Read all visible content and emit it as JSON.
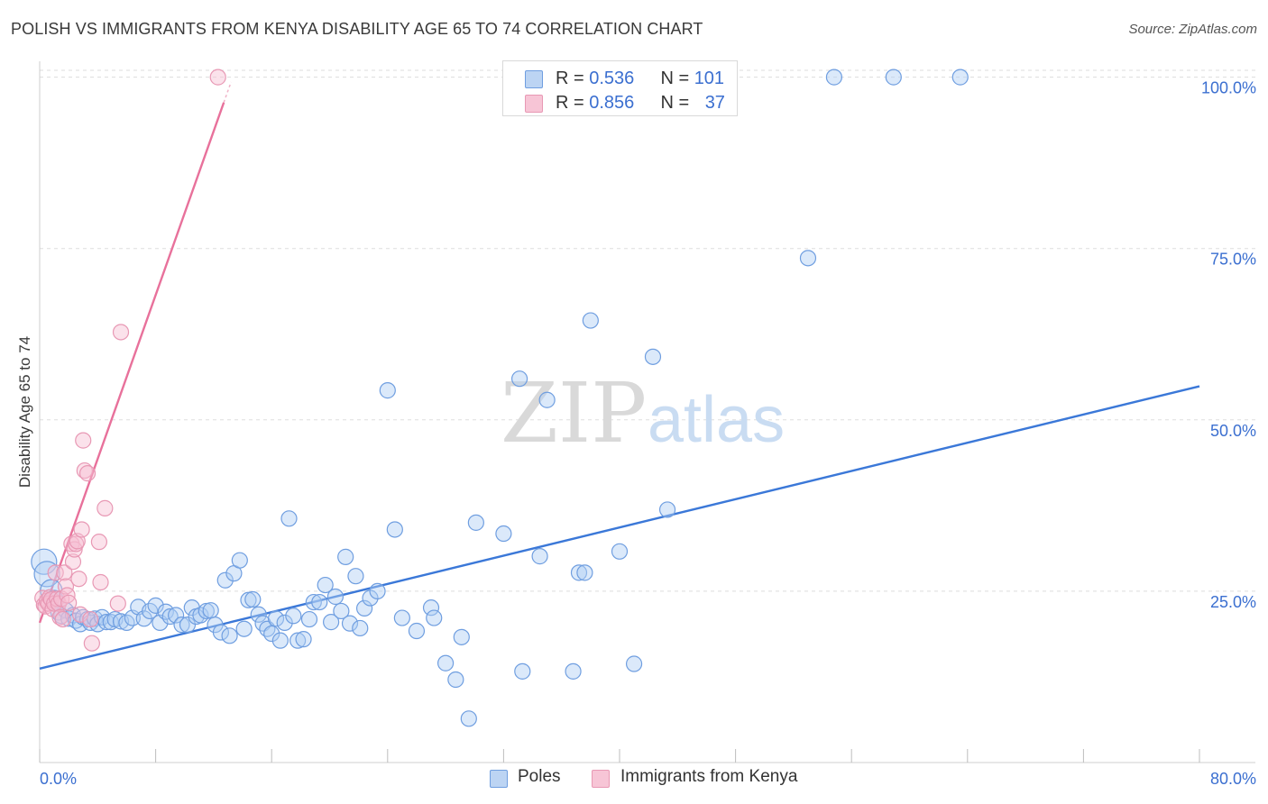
{
  "title": "POLISH VS IMMIGRANTS FROM KENYA DISABILITY AGE 65 TO 74 CORRELATION CHART",
  "source": "Source: ZipAtlas.com",
  "watermark": {
    "zip": "ZIP",
    "atlas": "atlas"
  },
  "legend": {
    "rows": [
      {
        "r_label": "R = ",
        "r_value": "0.536",
        "n_label": "N = ",
        "n_value": "101"
      },
      {
        "r_label": "R = ",
        "r_value": "0.856",
        "n_label": "N = ",
        "n_value": "37"
      }
    ]
  },
  "chart_data": {
    "type": "scatter",
    "title": "POLISH VS IMMIGRANTS FROM KENYA DISABILITY AGE 65 TO 74 CORRELATION CHART",
    "xlabel": "",
    "ylabel": "Disability Age 65 to 74",
    "xlim": [
      0,
      80
    ],
    "ylim": [
      0,
      101
    ],
    "x_tick_labels": [
      "0.0%",
      "80.0%"
    ],
    "y_tick_labels": [
      "100.0%",
      "75.0%",
      "50.0%",
      "25.0%"
    ],
    "y_ticks": [
      100,
      75,
      50,
      25
    ],
    "grid": true,
    "colors": {
      "Poles": "#3b78d8",
      "Immigrants from Kenya": "#e8719b",
      "axis_label": "#3b6fd0",
      "grid": "#dddddd"
    },
    "series": [
      {
        "name": "Poles",
        "r": 0.536,
        "n": 101,
        "trend": {
          "x": [
            0,
            80
          ],
          "y": [
            13.7,
            54.9
          ]
        },
        "points": [
          [
            0.3,
            29.3
          ],
          [
            0.5,
            27.5
          ],
          [
            0.8,
            25.1
          ],
          [
            1.0,
            23.8
          ],
          [
            1.3,
            21.9
          ],
          [
            1.5,
            21.4
          ],
          [
            1.8,
            22.2
          ],
          [
            2.0,
            21.0
          ],
          [
            2.3,
            21.5
          ],
          [
            2.5,
            20.7
          ],
          [
            2.8,
            20.2
          ],
          [
            3.0,
            21.2
          ],
          [
            3.3,
            20.9
          ],
          [
            3.5,
            20.4
          ],
          [
            3.8,
            21.0
          ],
          [
            4.0,
            20.2
          ],
          [
            4.3,
            21.2
          ],
          [
            4.6,
            20.5
          ],
          [
            4.9,
            20.5
          ],
          [
            5.2,
            20.9
          ],
          [
            5.6,
            20.6
          ],
          [
            6.0,
            20.4
          ],
          [
            6.4,
            21.1
          ],
          [
            6.8,
            22.7
          ],
          [
            7.2,
            21.0
          ],
          [
            7.6,
            22.1
          ],
          [
            8.0,
            22.9
          ],
          [
            8.3,
            20.4
          ],
          [
            8.7,
            22.0
          ],
          [
            9.0,
            21.3
          ],
          [
            9.4,
            21.5
          ],
          [
            9.8,
            20.1
          ],
          [
            10.2,
            20.1
          ],
          [
            10.5,
            22.6
          ],
          [
            10.8,
            21.3
          ],
          [
            11.1,
            21.5
          ],
          [
            11.5,
            22.1
          ],
          [
            11.8,
            22.2
          ],
          [
            12.1,
            20.1
          ],
          [
            12.5,
            19.0
          ],
          [
            12.8,
            26.6
          ],
          [
            13.1,
            18.5
          ],
          [
            13.4,
            27.6
          ],
          [
            13.8,
            29.5
          ],
          [
            14.1,
            19.5
          ],
          [
            14.4,
            23.7
          ],
          [
            14.7,
            23.8
          ],
          [
            15.1,
            21.6
          ],
          [
            15.4,
            20.3
          ],
          [
            15.7,
            19.5
          ],
          [
            16.0,
            18.8
          ],
          [
            16.3,
            21.0
          ],
          [
            16.6,
            17.8
          ],
          [
            16.9,
            20.4
          ],
          [
            17.2,
            35.6
          ],
          [
            17.5,
            21.4
          ],
          [
            17.8,
            17.8
          ],
          [
            18.2,
            18.0
          ],
          [
            18.6,
            20.9
          ],
          [
            18.9,
            23.4
          ],
          [
            19.3,
            23.4
          ],
          [
            19.7,
            25.9
          ],
          [
            20.1,
            20.5
          ],
          [
            20.4,
            24.2
          ],
          [
            20.8,
            22.1
          ],
          [
            21.1,
            30.0
          ],
          [
            21.4,
            20.3
          ],
          [
            21.8,
            27.2
          ],
          [
            22.1,
            19.6
          ],
          [
            22.4,
            22.5
          ],
          [
            22.8,
            24.0
          ],
          [
            23.3,
            25.0
          ],
          [
            24.0,
            54.3
          ],
          [
            24.5,
            34.0
          ],
          [
            25.0,
            21.1
          ],
          [
            26.0,
            19.2
          ],
          [
            27.0,
            22.6
          ],
          [
            27.2,
            21.1
          ],
          [
            28.0,
            14.5
          ],
          [
            28.7,
            12.1
          ],
          [
            29.1,
            18.3
          ],
          [
            29.6,
            6.4
          ],
          [
            30.1,
            35.0
          ],
          [
            32.0,
            33.4
          ],
          [
            33.1,
            56.0
          ],
          [
            33.3,
            13.3
          ],
          [
            34.5,
            30.1
          ],
          [
            35.0,
            52.9
          ],
          [
            36.8,
            13.3
          ],
          [
            37.2,
            27.7
          ],
          [
            37.6,
            27.7
          ],
          [
            38.0,
            64.5
          ],
          [
            40.0,
            30.8
          ],
          [
            41.0,
            14.4
          ],
          [
            42.3,
            59.2
          ],
          [
            43.3,
            36.9
          ],
          [
            53.0,
            73.6
          ],
          [
            54.8,
            100.0
          ],
          [
            58.9,
            100.0
          ],
          [
            63.5,
            100.0
          ]
        ]
      },
      {
        "name": "Immigrants from Kenya",
        "r": 0.856,
        "n": 37,
        "trend": {
          "x": [
            0,
            12.7
          ],
          "y": [
            20.4,
            96.3
          ]
        },
        "points": [
          [
            0.2,
            24.0
          ],
          [
            0.3,
            23.0
          ],
          [
            0.4,
            22.8
          ],
          [
            0.5,
            23.6
          ],
          [
            0.6,
            23.2
          ],
          [
            0.7,
            24.1
          ],
          [
            0.8,
            23.8
          ],
          [
            0.9,
            22.4
          ],
          [
            1.0,
            23.2
          ],
          [
            1.1,
            27.7
          ],
          [
            1.2,
            23.9
          ],
          [
            1.3,
            23.2
          ],
          [
            1.4,
            21.2
          ],
          [
            1.5,
            23.9
          ],
          [
            1.6,
            20.9
          ],
          [
            1.7,
            27.7
          ],
          [
            1.8,
            25.7
          ],
          [
            1.9,
            24.4
          ],
          [
            2.0,
            23.3
          ],
          [
            2.2,
            31.9
          ],
          [
            2.3,
            29.3
          ],
          [
            2.4,
            31.1
          ],
          [
            2.5,
            31.9
          ],
          [
            2.6,
            32.3
          ],
          [
            2.7,
            26.8
          ],
          [
            2.8,
            21.6
          ],
          [
            2.9,
            34.0
          ],
          [
            3.0,
            47.0
          ],
          [
            3.1,
            42.6
          ],
          [
            3.3,
            42.2
          ],
          [
            3.5,
            20.9
          ],
          [
            3.6,
            17.4
          ],
          [
            4.1,
            32.2
          ],
          [
            4.2,
            26.3
          ],
          [
            4.5,
            37.1
          ],
          [
            5.4,
            23.2
          ],
          [
            5.6,
            62.8
          ],
          [
            12.3,
            100.0
          ]
        ]
      }
    ]
  },
  "bottom_legend": [
    {
      "label": "Poles"
    },
    {
      "label": "Immigrants from Kenya"
    }
  ]
}
